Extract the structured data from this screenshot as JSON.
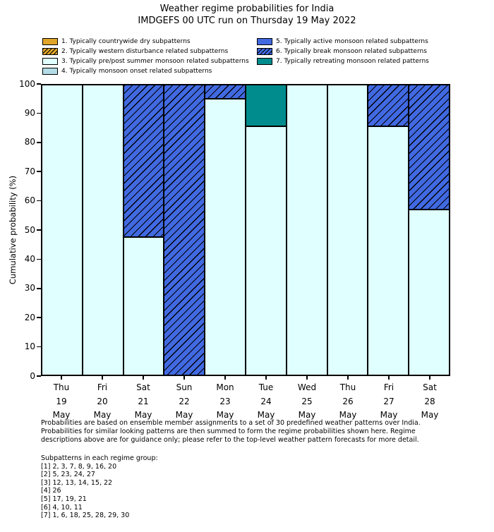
{
  "title": "Weather regime probabilities for India",
  "subtitle": "IMDGEFS 00 UTC run on Thursday 19 May 2022",
  "colors": {
    "regime_dry": "#dfa428",
    "regime_prepost_monsoon": "#e0ffff",
    "regime_onset": "#b4dce6",
    "regime_active": "#4169e1",
    "regime_retreating": "#008c8c",
    "axis": "#000000",
    "hatch": "#000000"
  },
  "legend": {
    "columns": [
      {
        "items": [
          {
            "label": "1. Typically countrywide dry subpatterns",
            "color": "#dfa428",
            "hatch": false
          },
          {
            "label": "2. Typically western disturbance related subpatterns",
            "color": "#dfa428",
            "hatch": true
          },
          {
            "label": "3. Typically pre/post summer monsoon related subpatterns",
            "color": "#e0ffff",
            "hatch": false
          },
          {
            "label": "4. Typically monsoon onset related subpatterns",
            "color": "#b4dce6",
            "hatch": false
          }
        ]
      },
      {
        "items": [
          {
            "label": "5. Typically active monsoon related subpatterns",
            "color": "#4169e1",
            "hatch": false
          },
          {
            "label": "6. Typically break monsoon related subpatterns",
            "color": "#4169e1",
            "hatch": true
          },
          {
            "label": "7. Typically retreating monsoon related patterns",
            "color": "#008c8c",
            "hatch": false
          }
        ]
      }
    ]
  },
  "chart_data": {
    "type": "bar",
    "stacked": true,
    "title": "Weather regime probabilities for India",
    "subtitle": "IMDGEFS 00 UTC run on Thursday 19 May 2022",
    "ylabel": "Cumulative probability (%)",
    "xlabel": "",
    "ylim": [
      0,
      100
    ],
    "yticks": [
      0,
      10,
      20,
      30,
      40,
      50,
      60,
      70,
      80,
      90,
      100
    ],
    "grid": false,
    "legend_position": "top",
    "categories": [
      [
        "Thu",
        "19",
        "May"
      ],
      [
        "Fri",
        "20",
        "May"
      ],
      [
        "Sat",
        "21",
        "May"
      ],
      [
        "Sun",
        "22",
        "May"
      ],
      [
        "Mon",
        "23",
        "May"
      ],
      [
        "Tue",
        "24",
        "May"
      ],
      [
        "Wed",
        "25",
        "May"
      ],
      [
        "Thu",
        "26",
        "May"
      ],
      [
        "Fri",
        "27",
        "May"
      ],
      [
        "Sat",
        "28",
        "May"
      ]
    ],
    "series": [
      {
        "name": "3. Typically pre/post summer monsoon related subpatterns",
        "color": "#e0ffff",
        "hatch": false,
        "values": [
          100,
          100,
          47.6,
          0,
          95.2,
          85.7,
          100,
          100,
          85.7,
          57.1
        ]
      },
      {
        "name": "6. Typically break monsoon related subpatterns",
        "color": "#4169e1",
        "hatch": true,
        "values": [
          0,
          0,
          52.4,
          100,
          4.8,
          0,
          0,
          0,
          14.3,
          42.9
        ]
      },
      {
        "name": "7. Typically retreating monsoon related patterns",
        "color": "#008c8c",
        "hatch": false,
        "values": [
          0,
          0,
          0,
          0,
          0,
          14.3,
          0,
          0,
          0,
          0
        ]
      }
    ]
  },
  "footer": {
    "lines": [
      "Probabilities are based on ensemble member assignments to a set of 30 predefined weather patterns over India.",
      "Probabilities for similar looking patterns are then summed to form the regime probabilities shown here. Regime",
      "descriptions above are for guidance only; please refer to the top-level weather pattern forecasts for more detail."
    ]
  },
  "subpatterns": {
    "heading": "Subpatterns in each regime group:",
    "groups": [
      "[1] 2, 3, 7, 8, 9, 16, 20",
      "[2] 5, 23, 24, 27",
      "[3] 12, 13, 14, 15, 22",
      "[4] 26",
      "[5] 17, 19, 21",
      "[6] 4, 10, 11",
      "[7] 1, 6, 18, 25, 28, 29, 30"
    ]
  }
}
